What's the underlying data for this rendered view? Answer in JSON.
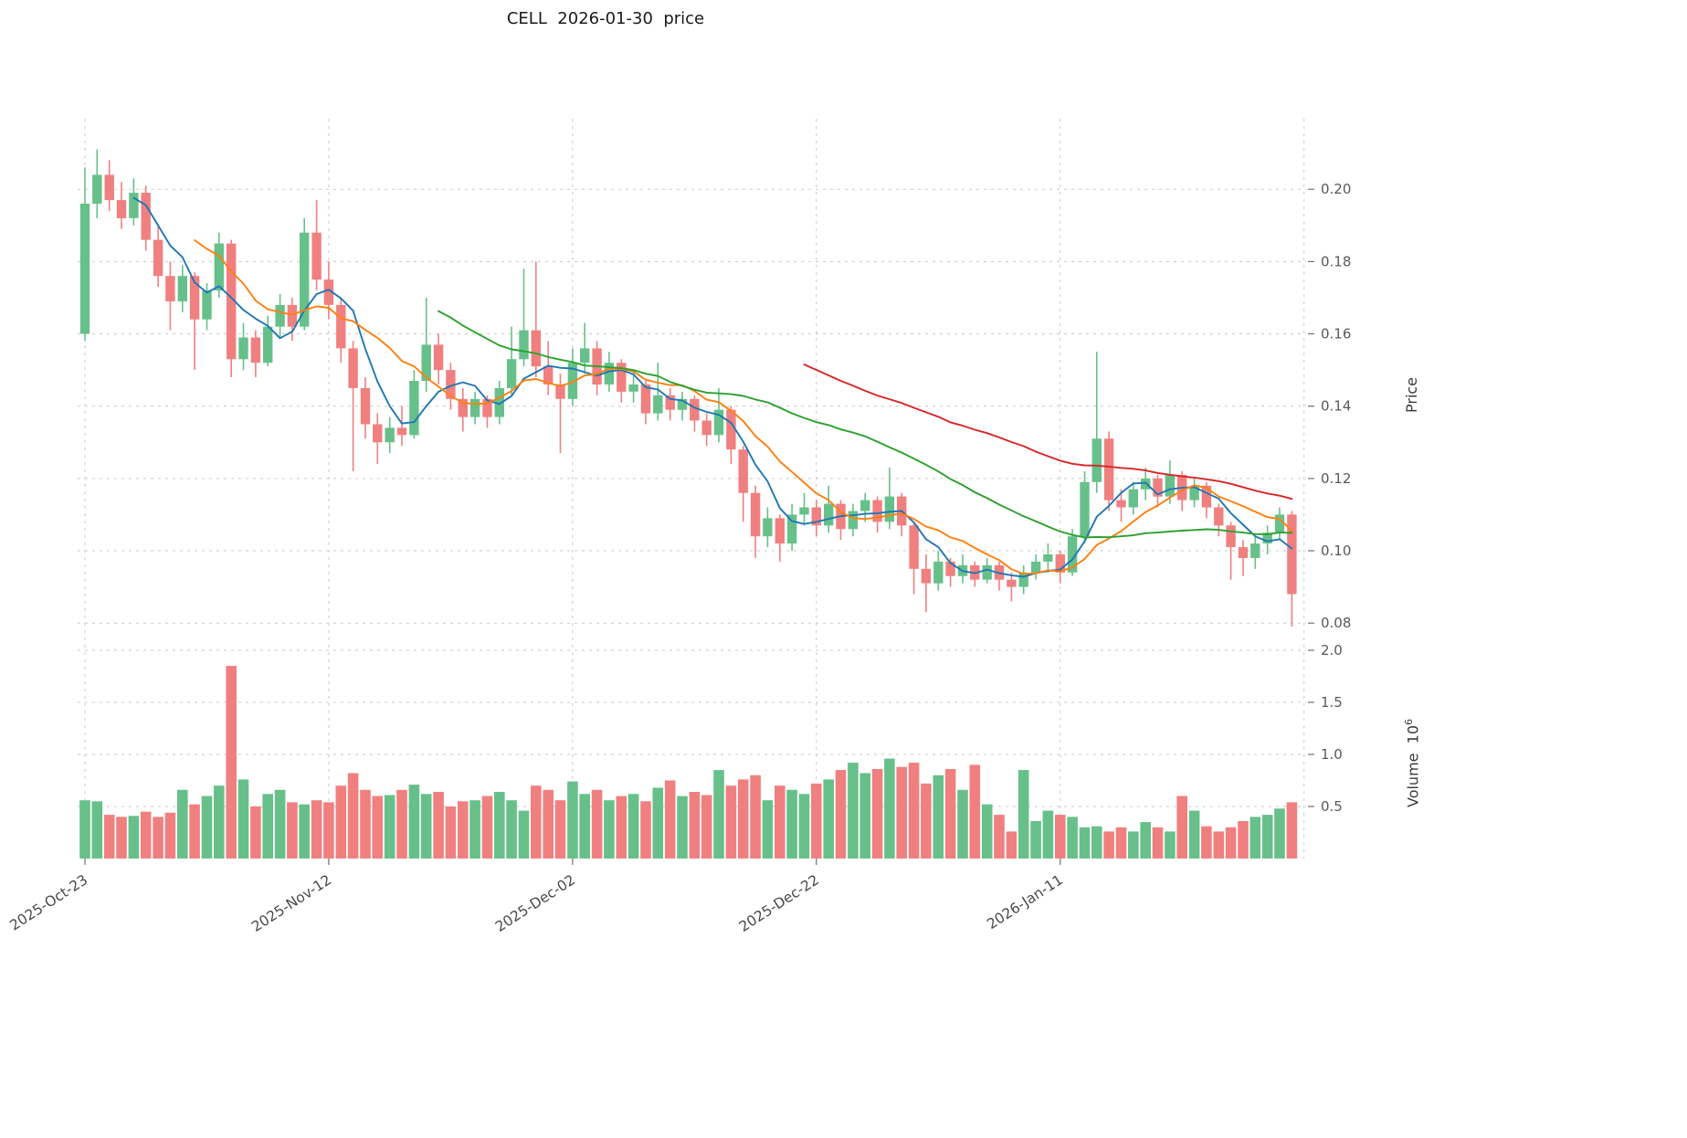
{
  "title": "CELL  2026-01-30  price",
  "axes": {
    "price_label": "Price",
    "volume_label": "Volume",
    "volume_scale_base": "10",
    "volume_scale_exp": "6"
  },
  "chart_data": {
    "type": "candlestick",
    "symbol": "CELL",
    "start_date": "2025-10-23",
    "title": "CELL  2026-01-30  price",
    "columns": [
      "open",
      "high",
      "low",
      "close",
      "volume_millions"
    ],
    "rows": [
      [
        0.16,
        0.206,
        0.158,
        0.196,
        0.56
      ],
      [
        0.196,
        0.211,
        0.192,
        0.204,
        0.55
      ],
      [
        0.204,
        0.208,
        0.194,
        0.197,
        0.42
      ],
      [
        0.197,
        0.202,
        0.189,
        0.192,
        0.4
      ],
      [
        0.192,
        0.203,
        0.19,
        0.199,
        0.41
      ],
      [
        0.199,
        0.201,
        0.183,
        0.186,
        0.45
      ],
      [
        0.186,
        0.19,
        0.173,
        0.176,
        0.4
      ],
      [
        0.176,
        0.18,
        0.161,
        0.169,
        0.44
      ],
      [
        0.169,
        0.179,
        0.166,
        0.176,
        0.66
      ],
      [
        0.176,
        0.177,
        0.15,
        0.164,
        0.52
      ],
      [
        0.164,
        0.174,
        0.161,
        0.172,
        0.6
      ],
      [
        0.172,
        0.188,
        0.17,
        0.185,
        0.7
      ],
      [
        0.185,
        0.186,
        0.148,
        0.153,
        1.85
      ],
      [
        0.153,
        0.163,
        0.15,
        0.159,
        0.76
      ],
      [
        0.159,
        0.161,
        0.148,
        0.152,
        0.5
      ],
      [
        0.152,
        0.165,
        0.151,
        0.162,
        0.62
      ],
      [
        0.162,
        0.171,
        0.159,
        0.168,
        0.66
      ],
      [
        0.168,
        0.17,
        0.158,
        0.162,
        0.54
      ],
      [
        0.162,
        0.192,
        0.161,
        0.188,
        0.52
      ],
      [
        0.188,
        0.197,
        0.172,
        0.175,
        0.56
      ],
      [
        0.175,
        0.18,
        0.164,
        0.168,
        0.54
      ],
      [
        0.168,
        0.17,
        0.152,
        0.156,
        0.7
      ],
      [
        0.156,
        0.158,
        0.122,
        0.145,
        0.82
      ],
      [
        0.145,
        0.148,
        0.131,
        0.135,
        0.66
      ],
      [
        0.135,
        0.138,
        0.124,
        0.13,
        0.6
      ],
      [
        0.13,
        0.137,
        0.127,
        0.134,
        0.61
      ],
      [
        0.134,
        0.14,
        0.129,
        0.132,
        0.66
      ],
      [
        0.132,
        0.15,
        0.131,
        0.147,
        0.71
      ],
      [
        0.147,
        0.17,
        0.144,
        0.157,
        0.62
      ],
      [
        0.157,
        0.16,
        0.146,
        0.15,
        0.64
      ],
      [
        0.15,
        0.152,
        0.139,
        0.142,
        0.5
      ],
      [
        0.142,
        0.145,
        0.133,
        0.137,
        0.55
      ],
      [
        0.137,
        0.144,
        0.135,
        0.142,
        0.56
      ],
      [
        0.142,
        0.143,
        0.134,
        0.137,
        0.6
      ],
      [
        0.137,
        0.147,
        0.135,
        0.145,
        0.64
      ],
      [
        0.145,
        0.162,
        0.143,
        0.153,
        0.56
      ],
      [
        0.153,
        0.178,
        0.151,
        0.161,
        0.46
      ],
      [
        0.161,
        0.18,
        0.148,
        0.151,
        0.7
      ],
      [
        0.151,
        0.158,
        0.143,
        0.146,
        0.66
      ],
      [
        0.146,
        0.149,
        0.127,
        0.142,
        0.56
      ],
      [
        0.142,
        0.156,
        0.14,
        0.152,
        0.74
      ],
      [
        0.152,
        0.163,
        0.149,
        0.156,
        0.62
      ],
      [
        0.156,
        0.158,
        0.143,
        0.146,
        0.66
      ],
      [
        0.146,
        0.155,
        0.144,
        0.152,
        0.56
      ],
      [
        0.152,
        0.153,
        0.141,
        0.144,
        0.6
      ],
      [
        0.144,
        0.15,
        0.141,
        0.146,
        0.62
      ],
      [
        0.146,
        0.147,
        0.135,
        0.138,
        0.55
      ],
      [
        0.138,
        0.152,
        0.136,
        0.143,
        0.68
      ],
      [
        0.143,
        0.145,
        0.136,
        0.139,
        0.75
      ],
      [
        0.139,
        0.144,
        0.136,
        0.142,
        0.6
      ],
      [
        0.142,
        0.143,
        0.133,
        0.136,
        0.64
      ],
      [
        0.136,
        0.138,
        0.129,
        0.132,
        0.61
      ],
      [
        0.132,
        0.145,
        0.13,
        0.139,
        0.85
      ],
      [
        0.139,
        0.14,
        0.124,
        0.128,
        0.7
      ],
      [
        0.128,
        0.129,
        0.108,
        0.116,
        0.76
      ],
      [
        0.116,
        0.118,
        0.098,
        0.104,
        0.8
      ],
      [
        0.104,
        0.112,
        0.101,
        0.109,
        0.56
      ],
      [
        0.109,
        0.11,
        0.097,
        0.102,
        0.7
      ],
      [
        0.102,
        0.113,
        0.1,
        0.11,
        0.66
      ],
      [
        0.11,
        0.116,
        0.107,
        0.112,
        0.62
      ],
      [
        0.112,
        0.114,
        0.104,
        0.107,
        0.72
      ],
      [
        0.107,
        0.118,
        0.105,
        0.113,
        0.76
      ],
      [
        0.113,
        0.114,
        0.103,
        0.106,
        0.85
      ],
      [
        0.106,
        0.113,
        0.104,
        0.111,
        0.92
      ],
      [
        0.111,
        0.116,
        0.108,
        0.114,
        0.82
      ],
      [
        0.114,
        0.115,
        0.105,
        0.108,
        0.86
      ],
      [
        0.108,
        0.123,
        0.106,
        0.115,
        0.96
      ],
      [
        0.115,
        0.116,
        0.104,
        0.107,
        0.88
      ],
      [
        0.107,
        0.108,
        0.088,
        0.095,
        0.92
      ],
      [
        0.095,
        0.099,
        0.083,
        0.091,
        0.72
      ],
      [
        0.091,
        0.1,
        0.089,
        0.097,
        0.8
      ],
      [
        0.097,
        0.098,
        0.09,
        0.093,
        0.86
      ],
      [
        0.093,
        0.099,
        0.091,
        0.096,
        0.66
      ],
      [
        0.096,
        0.097,
        0.09,
        0.092,
        0.9
      ],
      [
        0.092,
        0.098,
        0.091,
        0.096,
        0.52
      ],
      [
        0.096,
        0.097,
        0.089,
        0.092,
        0.42
      ],
      [
        0.092,
        0.094,
        0.086,
        0.09,
        0.26
      ],
      [
        0.09,
        0.096,
        0.088,
        0.094,
        0.85
      ],
      [
        0.094,
        0.099,
        0.092,
        0.097,
        0.36
      ],
      [
        0.097,
        0.102,
        0.094,
        0.099,
        0.46
      ],
      [
        0.099,
        0.1,
        0.091,
        0.094,
        0.42
      ],
      [
        0.094,
        0.106,
        0.093,
        0.104,
        0.4
      ],
      [
        0.104,
        0.122,
        0.102,
        0.119,
        0.3
      ],
      [
        0.119,
        0.155,
        0.116,
        0.131,
        0.31
      ],
      [
        0.131,
        0.133,
        0.111,
        0.114,
        0.26
      ],
      [
        0.114,
        0.117,
        0.108,
        0.112,
        0.3
      ],
      [
        0.112,
        0.119,
        0.11,
        0.117,
        0.26
      ],
      [
        0.117,
        0.123,
        0.114,
        0.12,
        0.35
      ],
      [
        0.12,
        0.121,
        0.112,
        0.115,
        0.3
      ],
      [
        0.115,
        0.125,
        0.113,
        0.121,
        0.26
      ],
      [
        0.121,
        0.122,
        0.111,
        0.114,
        0.6
      ],
      [
        0.114,
        0.12,
        0.112,
        0.118,
        0.46
      ],
      [
        0.118,
        0.119,
        0.109,
        0.112,
        0.31
      ],
      [
        0.112,
        0.113,
        0.104,
        0.107,
        0.26
      ],
      [
        0.107,
        0.108,
        0.092,
        0.101,
        0.3
      ],
      [
        0.101,
        0.103,
        0.093,
        0.098,
        0.36
      ],
      [
        0.098,
        0.104,
        0.095,
        0.102,
        0.4
      ],
      [
        0.102,
        0.107,
        0.099,
        0.105,
        0.42
      ],
      [
        0.105,
        0.112,
        0.103,
        0.11,
        0.48
      ],
      [
        0.11,
        0.111,
        0.079,
        0.088,
        0.54
      ]
    ],
    "x_ticks": [
      {
        "index": 0,
        "label": "2025-Oct-23"
      },
      {
        "index": 20,
        "label": "2025-Nov-12"
      },
      {
        "index": 40,
        "label": "2025-Dec-02"
      },
      {
        "index": 60,
        "label": "2025-Dec-22"
      },
      {
        "index": 80,
        "label": "2026-Jan-11"
      },
      {
        "index": 100,
        "label": ""
      }
    ],
    "price_axis": {
      "label": "Price",
      "min": 0.0755,
      "max": 0.2195,
      "ticks": [
        {
          "value": 0.2,
          "label": "0.20"
        },
        {
          "value": 0.18,
          "label": "0.18"
        },
        {
          "value": 0.16,
          "label": "0.16"
        },
        {
          "value": 0.14,
          "label": "0.14"
        },
        {
          "value": 0.12,
          "label": "0.12"
        },
        {
          "value": 0.1,
          "label": "0.10"
        },
        {
          "value": 0.08,
          "label": "0.08"
        }
      ]
    },
    "volume_axis": {
      "label": "Volume",
      "unit_exponent": 6,
      "max": 2.05,
      "ticks": [
        {
          "value": 2.0,
          "label": "2.0"
        },
        {
          "value": 1.5,
          "label": "1.5"
        },
        {
          "value": 1.0,
          "label": "1.0"
        },
        {
          "value": 0.5,
          "label": "0.5"
        }
      ]
    },
    "moving_averages": [
      {
        "name": "ma5",
        "window": 5,
        "color": "#1f77b4"
      },
      {
        "name": "ma10",
        "window": 10,
        "color": "#ff7f0e"
      },
      {
        "name": "ma30",
        "window": 30,
        "color": "#2ca02c"
      },
      {
        "name": "ma60",
        "window": 60,
        "color": "#d62728"
      }
    ],
    "colors": {
      "up": "#67c08a",
      "down": "#f08080",
      "grid": "#c9c9c9"
    }
  }
}
